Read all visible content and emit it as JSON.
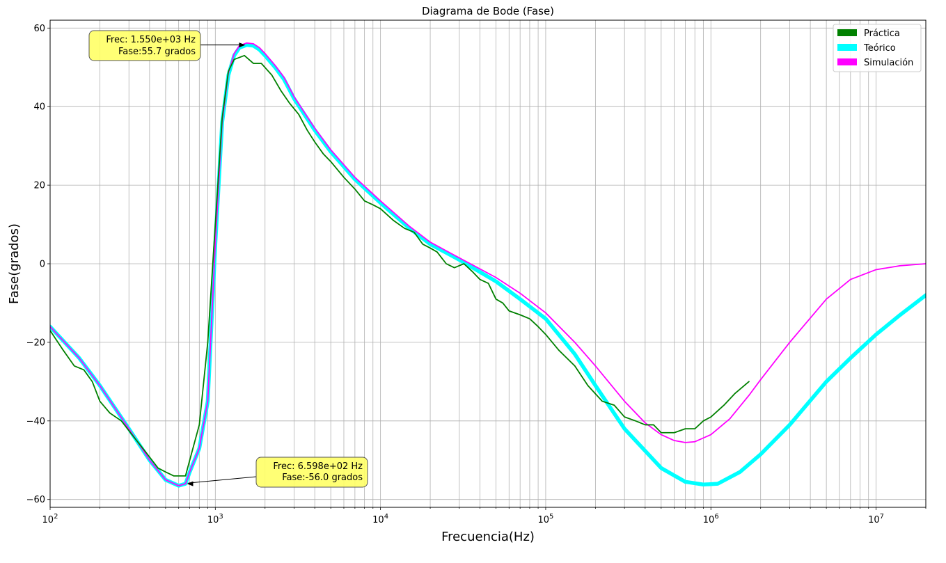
{
  "chart_data": {
    "type": "line",
    "title": "Diagrama de Bode (Fase)",
    "xlabel": "Frecuencia(Hz)",
    "ylabel": "Fase(grados)",
    "xscale": "log",
    "xlim": [
      100,
      20000000
    ],
    "ylim": [
      -62,
      62
    ],
    "yticks": [
      60,
      40,
      20,
      0,
      -20,
      -40,
      -60
    ],
    "yticklabels": [
      "60",
      "40",
      "20",
      "0",
      "−20",
      "−40",
      "−60"
    ],
    "xticks": [
      {
        "value": 100,
        "base": "10",
        "exp": "2"
      },
      {
        "value": 1000,
        "base": "10",
        "exp": "3"
      },
      {
        "value": 10000,
        "base": "10",
        "exp": "4"
      },
      {
        "value": 100000,
        "base": "10",
        "exp": "5"
      },
      {
        "value": 1000000,
        "base": "10",
        "exp": "6"
      },
      {
        "value": 10000000,
        "base": "10",
        "exp": "7"
      }
    ],
    "grid": "major and minor",
    "legend_position": "top-right",
    "series": [
      {
        "name": "Práctica",
        "color": "#008000",
        "x": [
          100,
          120,
          140,
          160,
          180,
          200,
          230,
          270,
          320,
          380,
          450,
          500,
          560,
          600,
          660,
          700,
          800,
          900,
          1000,
          1100,
          1200,
          1300,
          1500,
          1700,
          1900,
          2200,
          2500,
          2800,
          3200,
          3600,
          4000,
          4500,
          5000,
          6000,
          7000,
          8000,
          9000,
          10000,
          12000,
          14000,
          16000,
          18000,
          20000,
          22000,
          25000,
          28000,
          32000,
          36000,
          40000,
          45000,
          50000,
          55000,
          60000,
          70000,
          80000,
          90000,
          100000,
          120000,
          150000,
          180000,
          220000,
          260000,
          300000,
          350000,
          400000,
          450000,
          500000,
          550000,
          600000,
          700000,
          800000,
          900000,
          1000000,
          1200000,
          1400000,
          1700000
        ],
        "y": [
          -17,
          -22,
          -26,
          -27,
          -30,
          -35,
          -38,
          -40,
          -44,
          -48,
          -52,
          -53,
          -54,
          -54,
          -54,
          -50,
          -41,
          -20,
          10,
          37,
          49,
          52,
          53,
          51,
          51,
          48,
          44,
          41,
          38,
          34,
          31,
          28,
          26,
          22,
          19,
          16,
          15,
          14,
          11,
          9,
          8,
          5,
          4,
          3,
          0,
          -1,
          0,
          -2,
          -4,
          -5,
          -9,
          -10,
          -12,
          -13,
          -14,
          -16,
          -18,
          -22,
          -26,
          -31,
          -35,
          -36,
          -39,
          -40,
          -41,
          -41,
          -43,
          -43,
          -43,
          -42,
          -42,
          -40,
          -39,
          -36,
          -33,
          -30
        ]
      },
      {
        "name": "Teórico",
        "color": "#00ffff",
        "x": [
          100,
          150,
          200,
          300,
          400,
          500,
          600,
          660,
          700,
          800,
          900,
          1000,
          1100,
          1200,
          1300,
          1400,
          1550,
          1700,
          1850,
          2000,
          2300,
          2600,
          3000,
          4000,
          5000,
          7000,
          10000,
          15000,
          20000,
          30000,
          50000,
          70000,
          100000,
          150000,
          200000,
          300000,
          500000,
          700000,
          900000,
          1100000,
          1500000,
          2000000,
          3000000,
          5000000,
          7000000,
          10000000,
          14000000,
          20000000
        ],
        "y": [
          -16,
          -24,
          -31,
          -42,
          -50,
          -55,
          -56.5,
          -56,
          -53,
          -47,
          -35,
          5,
          36,
          48,
          53,
          55,
          55.7,
          55.5,
          54.5,
          53,
          50,
          47,
          42,
          34,
          28.5,
          21.5,
          15.5,
          9,
          5,
          1,
          -4.5,
          -9,
          -14,
          -23,
          -31,
          -42,
          -52,
          -55.5,
          -56.2,
          -56,
          -53,
          -48.5,
          -41,
          -30,
          -24,
          -18,
          -13,
          -8
        ]
      },
      {
        "name": "Simulación",
        "color": "#ff00ff",
        "x": [
          100,
          150,
          200,
          300,
          400,
          500,
          600,
          660,
          700,
          800,
          900,
          1000,
          1100,
          1200,
          1300,
          1400,
          1550,
          1700,
          1850,
          2000,
          2300,
          2600,
          3000,
          4000,
          5000,
          7000,
          10000,
          15000,
          20000,
          30000,
          50000,
          70000,
          100000,
          150000,
          200000,
          300000,
          400000,
          500000,
          600000,
          700000,
          800000,
          1000000,
          1300000,
          1700000,
          2000000,
          3000000,
          5000000,
          7000000,
          10000000,
          14000000,
          20000000
        ],
        "y": [
          -16,
          -24,
          -31,
          -42,
          -50,
          -55,
          -56.5,
          -56,
          -53,
          -47,
          -35,
          5,
          36,
          48.5,
          53.5,
          55.5,
          56.2,
          56,
          55,
          53.5,
          50.5,
          47.5,
          42.5,
          34.5,
          29,
          22,
          16,
          9.5,
          5.5,
          1.5,
          -3.5,
          -7.5,
          -12.5,
          -20,
          -26,
          -35,
          -40.5,
          -43.5,
          -45,
          -45.5,
          -45.3,
          -43.5,
          -39.5,
          -33.5,
          -29.5,
          -20,
          -9,
          -4,
          -1.5,
          -0.5,
          0
        ]
      }
    ],
    "annotations": [
      {
        "line1": "Frec: 1.550e+03  Hz",
        "line2": "Fase:55.7 grados",
        "target_x": 1550,
        "target_y": 55.7
      },
      {
        "line1": "Frec: 6.598e+02  Hz",
        "line2": "Fase:-56.0 grados",
        "target_x": 659.8,
        "target_y": -56.0
      }
    ]
  }
}
